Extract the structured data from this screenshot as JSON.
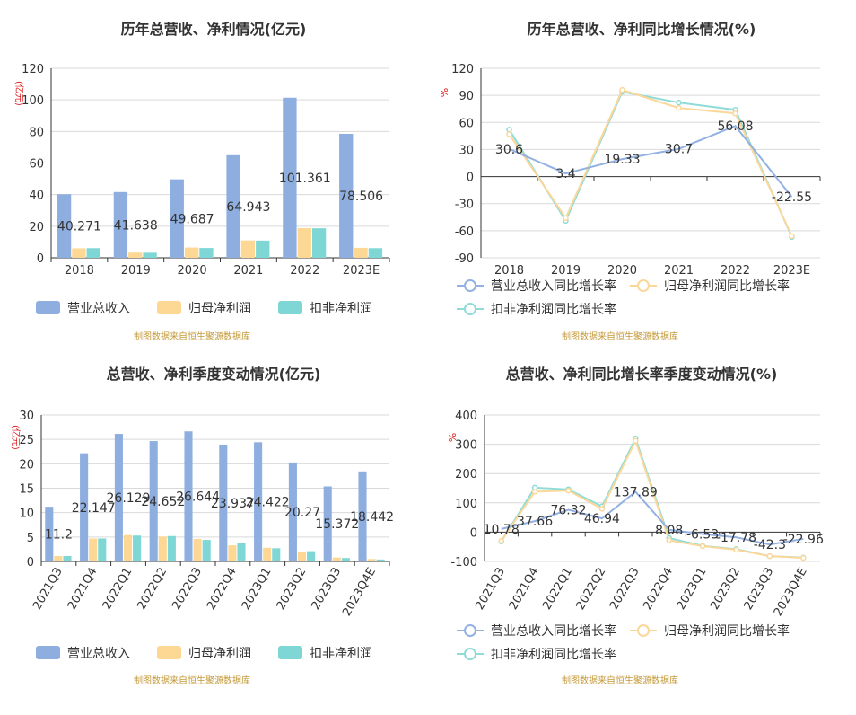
{
  "colors": {
    "revenue": "#8eaee0",
    "parent_profit": "#fdd894",
    "deducted_profit": "#7fd7d5",
    "rev_line": "#93b1e2",
    "parent_line": "#fbd79a",
    "deducted_line": "#8fdcd7",
    "grid": "#d9d9d9",
    "axis": "#333333",
    "source": "#c49a3a",
    "unit": "#e02020"
  },
  "chart_data": [
    {
      "type": "bar",
      "title": "历年总营收、净利情况(亿元)",
      "unit_label": "(亿元)",
      "categories": [
        "2018",
        "2019",
        "2020",
        "2021",
        "2022",
        "2023E"
      ],
      "ylim": [
        0,
        120
      ],
      "yticks": [
        0,
        20,
        40,
        60,
        80,
        100,
        120
      ],
      "series": [
        {
          "name": "营业总收入",
          "values": [
            40.271,
            41.638,
            49.687,
            64.943,
            101.361,
            78.506
          ],
          "labels": [
            "40.271",
            "41.638",
            "49.687",
            "64.943",
            "101.361",
            "78.506"
          ]
        },
        {
          "name": "归母净利润",
          "values": [
            6.0,
            3.3,
            6.5,
            11.0,
            18.8,
            6.3
          ]
        },
        {
          "name": "扣非净利润",
          "values": [
            6.1,
            3.2,
            6.2,
            10.9,
            18.7,
            6.1
          ]
        }
      ],
      "legend": "bottom",
      "source": "制图数据来自恒生聚源数据库"
    },
    {
      "type": "line",
      "title": "历年总营收、净利同比增长情况(%)",
      "unit_label": "%",
      "categories": [
        "2018",
        "2019",
        "2020",
        "2021",
        "2022",
        "2023E"
      ],
      "ylim": [
        -90,
        120
      ],
      "yticks": [
        -90,
        -60,
        -30,
        0,
        30,
        60,
        90,
        120
      ],
      "series": [
        {
          "name": "营业总收入同比增长率",
          "values": [
            30.6,
            3.4,
            19.33,
            30.7,
            56.08,
            -22.55
          ],
          "labels": [
            "30.6",
            "3.4",
            "19.33",
            "30.7",
            "56.08",
            "-22.55"
          ]
        },
        {
          "name": "归母净利润同比增长率",
          "values": [
            47,
            -46,
            96,
            76,
            70,
            -66
          ]
        },
        {
          "name": "扣非净利润同比增长率",
          "values": [
            52,
            -49,
            94,
            82,
            74,
            -67
          ]
        }
      ],
      "legend": "bottom",
      "source": "制图数据来自恒生聚源数据库"
    },
    {
      "type": "bar",
      "title": "总营收、净利季度变动情况(亿元)",
      "unit_label": "(亿元)",
      "categories": [
        "2021Q3",
        "2021Q4",
        "2022Q1",
        "2022Q2",
        "2022Q3",
        "2022Q4",
        "2023Q1",
        "2023Q2",
        "2023Q3",
        "2023Q4E"
      ],
      "ylim": [
        0,
        30
      ],
      "yticks": [
        0,
        5,
        10,
        15,
        20,
        25,
        30
      ],
      "series": [
        {
          "name": "营业总收入",
          "values": [
            11.2,
            22.147,
            26.129,
            24.652,
            26.644,
            23.937,
            24.422,
            20.27,
            15.372,
            18.442
          ],
          "labels": [
            "11.2",
            "22.147",
            "26.129",
            "24.652",
            "26.644",
            "23.937",
            "24.422",
            "20.27",
            "15.372",
            "18.442"
          ]
        },
        {
          "name": "归母净利润",
          "values": [
            1.1,
            4.7,
            5.4,
            5.1,
            4.6,
            3.3,
            2.8,
            2.0,
            0.8,
            0.5
          ]
        },
        {
          "name": "扣非净利润",
          "values": [
            1.1,
            4.7,
            5.3,
            5.2,
            4.4,
            3.7,
            2.7,
            2.1,
            0.7,
            0.4
          ]
        }
      ],
      "legend": "bottom",
      "source": "制图数据来自恒生聚源数据库"
    },
    {
      "type": "line",
      "title": "总营收、净利同比增长率季度变动情况(%)",
      "unit_label": "%",
      "categories": [
        "2021Q3",
        "2021Q4",
        "2022Q1",
        "2022Q2",
        "2022Q3",
        "2022Q4",
        "2023Q1",
        "2023Q2",
        "2023Q3",
        "2023Q4E"
      ],
      "ylim": [
        -100,
        400
      ],
      "yticks": [
        -100,
        0,
        100,
        200,
        300,
        400
      ],
      "series": [
        {
          "name": "营业总收入同比增长率",
          "values": [
            10.78,
            37.66,
            76.32,
            46.94,
            137.89,
            8.08,
            -6.53,
            -17.78,
            -42.3,
            -22.96
          ],
          "labels": [
            "10.78",
            "37.66",
            "76.32",
            "46.94",
            "137.89",
            "8.08",
            "-6.53",
            "-17.78",
            "-42.3",
            "-22.96"
          ]
        },
        {
          "name": "归母净利润同比增长率",
          "values": [
            -30,
            138,
            142,
            80,
            312,
            -28,
            -48,
            -60,
            -82,
            -88
          ]
        },
        {
          "name": "扣非净利润同比增长率",
          "values": [
            -32,
            152,
            146,
            88,
            320,
            -20,
            -47,
            -58,
            -82,
            -87
          ]
        }
      ],
      "legend": "bottom",
      "source": "制图数据来自恒生聚源数据库"
    }
  ]
}
